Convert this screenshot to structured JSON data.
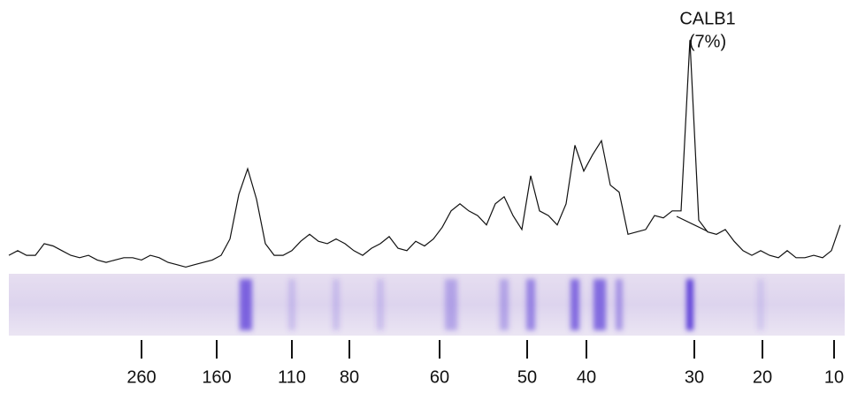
{
  "chart_data": {
    "type": "line",
    "annotation": "CALB1",
    "annotation_note": "(7%)",
    "values": [
      6,
      8,
      6,
      6,
      11,
      10,
      8,
      6,
      5,
      6,
      4,
      3,
      4,
      5,
      5,
      4,
      6,
      5,
      3,
      2,
      1,
      2,
      3,
      4,
      6,
      13,
      32,
      43,
      30,
      11,
      6,
      6,
      8,
      12,
      15,
      12,
      11,
      13,
      11,
      8,
      6,
      9,
      11,
      14,
      9,
      8,
      12,
      10,
      13,
      18,
      25,
      28,
      25,
      23,
      19,
      28,
      31,
      23,
      17,
      40,
      25,
      23,
      19,
      28,
      53,
      42,
      49,
      55,
      36,
      33,
      15,
      16,
      17,
      23,
      22,
      25,
      25,
      98,
      21,
      16,
      15,
      17,
      12,
      8,
      6,
      8,
      6,
      5,
      8,
      5,
      5,
      6,
      5,
      8,
      19
    ],
    "color": "#111111",
    "ylim": [
      0,
      100
    ],
    "marker_labels": [
      260,
      160,
      110,
      80,
      60,
      50,
      40,
      30,
      20,
      10
    ]
  }
}
